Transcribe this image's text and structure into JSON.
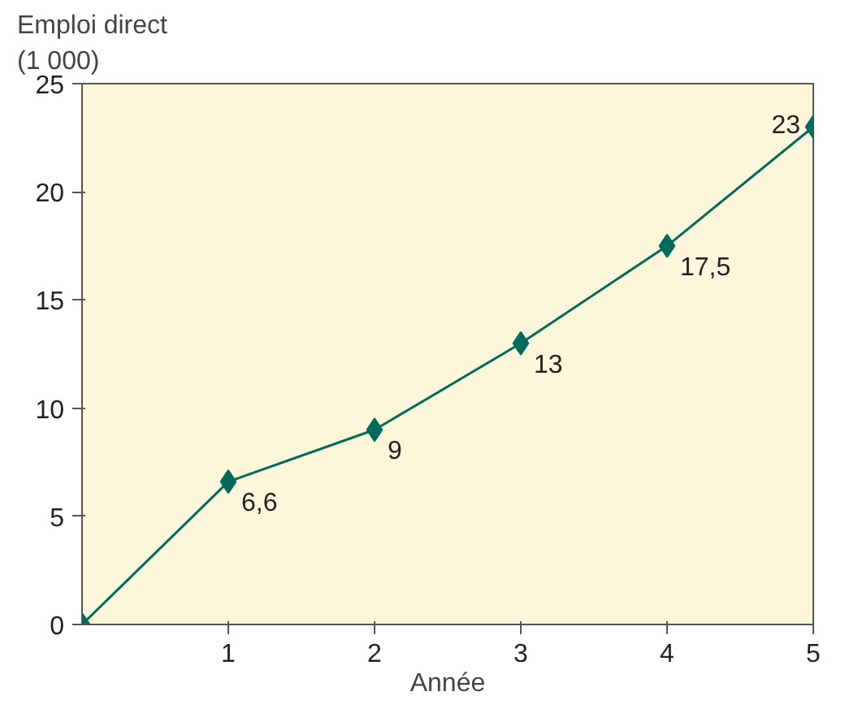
{
  "chart_data": {
    "type": "line",
    "ylabel": "Emploi direct\n(1 000)",
    "xlabel": "Année",
    "x": [
      0,
      1,
      2,
      3,
      4,
      5
    ],
    "series": [
      {
        "color": "#006b5b",
        "values": [
          0,
          6.6,
          9,
          13,
          17.5,
          23
        ],
        "value_labels": [
          null,
          "6,6",
          "9",
          "13",
          "17,5",
          "23"
        ]
      }
    ],
    "xlim": [
      0,
      5
    ],
    "xticks": [
      1,
      2,
      3,
      4,
      5
    ],
    "ylim": [
      0,
      25
    ],
    "yticks": [
      0,
      5,
      10,
      15,
      20,
      25
    ],
    "grid": false,
    "marker": "diamond",
    "line_style": "solid"
  }
}
